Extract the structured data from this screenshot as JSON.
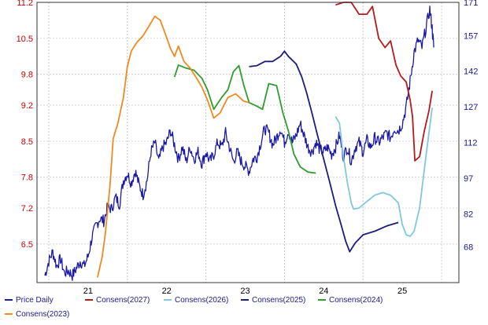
{
  "chart_data": {
    "type": "line",
    "x_ticks": [
      "21",
      "22",
      "23",
      "24",
      "25"
    ],
    "y_left": {
      "ticks": [
        "6.5",
        "7.2",
        "7.8",
        "8.5",
        "9.2",
        "9.8",
        "10.5",
        "11.2"
      ],
      "range": [
        5.75,
        11.2
      ]
    },
    "y_right": {
      "ticks": [
        "68",
        "82",
        "97",
        "112",
        "127",
        "142",
        "157",
        "171"
      ],
      "range": [
        53,
        171
      ]
    },
    "x_range": [
      20.85,
      26.22
    ],
    "grid": true,
    "legend_placement": "bottom",
    "series": [
      {
        "name": "Price Daily",
        "axis": "right",
        "color": "#1a1aa6",
        "points": [
          [
            20.95,
            56
          ],
          [
            21.0,
            62
          ],
          [
            21.05,
            66
          ],
          [
            21.1,
            60
          ],
          [
            21.15,
            63
          ],
          [
            21.2,
            57
          ],
          [
            21.25,
            58
          ],
          [
            21.3,
            56
          ],
          [
            21.35,
            59
          ],
          [
            21.4,
            62
          ],
          [
            21.45,
            60
          ],
          [
            21.5,
            64
          ],
          [
            21.55,
            72
          ],
          [
            21.6,
            77
          ],
          [
            21.65,
            80
          ],
          [
            21.7,
            79
          ],
          [
            21.75,
            85
          ],
          [
            21.8,
            84
          ],
          [
            21.85,
            89
          ],
          [
            21.9,
            86
          ],
          [
            21.95,
            96
          ],
          [
            22.0,
            99
          ],
          [
            22.05,
            95
          ],
          [
            22.1,
            100
          ],
          [
            22.15,
            94
          ],
          [
            22.2,
            90
          ],
          [
            22.25,
            96
          ],
          [
            22.3,
            108
          ],
          [
            22.35,
            112
          ],
          [
            22.4,
            104
          ],
          [
            22.45,
            110
          ],
          [
            22.5,
            112
          ],
          [
            22.55,
            117
          ],
          [
            22.6,
            111
          ],
          [
            22.65,
            105
          ],
          [
            22.7,
            110
          ],
          [
            22.75,
            104
          ],
          [
            22.8,
            110
          ],
          [
            22.85,
            105
          ],
          [
            22.9,
            108
          ],
          [
            22.95,
            103
          ],
          [
            23.0,
            108
          ],
          [
            23.05,
            104
          ],
          [
            23.1,
            107
          ],
          [
            23.15,
            112
          ],
          [
            23.2,
            110
          ],
          [
            23.25,
            116
          ],
          [
            23.3,
            110
          ],
          [
            23.35,
            104
          ],
          [
            23.4,
            108
          ],
          [
            23.45,
            104
          ],
          [
            23.5,
            102
          ],
          [
            23.55,
            100
          ],
          [
            23.6,
            105
          ],
          [
            23.65,
            106
          ],
          [
            23.7,
            112
          ],
          [
            23.75,
            118
          ],
          [
            23.8,
            116
          ],
          [
            23.85,
            111
          ],
          [
            23.9,
            114
          ],
          [
            23.95,
            118
          ],
          [
            24.0,
            112
          ],
          [
            24.05,
            117
          ],
          [
            24.1,
            112
          ],
          [
            24.15,
            115
          ],
          [
            24.2,
            120
          ],
          [
            24.25,
            115
          ],
          [
            24.3,
            110
          ],
          [
            24.35,
            108
          ],
          [
            24.4,
            112
          ],
          [
            24.45,
            109
          ],
          [
            24.5,
            108
          ],
          [
            24.55,
            110
          ],
          [
            24.6,
            107
          ],
          [
            24.65,
            110
          ],
          [
            24.7,
            115
          ],
          [
            24.75,
            106
          ],
          [
            24.8,
            110
          ],
          [
            24.85,
            104
          ],
          [
            24.9,
            110
          ],
          [
            24.95,
            112
          ],
          [
            25.0,
            108
          ],
          [
            25.05,
            113
          ],
          [
            25.1,
            110
          ],
          [
            25.15,
            114
          ],
          [
            25.2,
            112
          ],
          [
            25.25,
            114
          ],
          [
            25.3,
            116
          ],
          [
            25.35,
            114
          ],
          [
            25.4,
            118
          ],
          [
            25.45,
            117
          ],
          [
            25.5,
            120
          ],
          [
            25.55,
            127
          ],
          [
            25.6,
            138
          ],
          [
            25.65,
            150
          ],
          [
            25.7,
            155
          ],
          [
            25.75,
            152
          ],
          [
            25.8,
            160
          ],
          [
            25.85,
            168
          ],
          [
            25.88,
            160
          ],
          [
            25.9,
            152
          ]
        ]
      },
      {
        "name": "Consens(2027)",
        "axis": "left",
        "color": "#b31b1b",
        "points": [
          [
            24.65,
            11.15
          ],
          [
            24.75,
            11.2
          ],
          [
            24.85,
            11.2
          ],
          [
            24.95,
            10.97
          ],
          [
            25.05,
            10.97
          ],
          [
            25.12,
            11.12
          ],
          [
            25.2,
            10.5
          ],
          [
            25.28,
            10.32
          ],
          [
            25.35,
            10.45
          ],
          [
            25.42,
            9.98
          ],
          [
            25.48,
            9.77
          ],
          [
            25.55,
            9.65
          ],
          [
            25.6,
            9.3
          ],
          [
            25.63,
            8.98
          ],
          [
            25.66,
            8.12
          ],
          [
            25.72,
            8.2
          ],
          [
            25.78,
            8.7
          ],
          [
            25.84,
            9.1
          ],
          [
            25.88,
            9.48
          ]
        ]
      },
      {
        "name": "Consens(2026)",
        "axis": "left",
        "color": "#7fc8e0",
        "points": [
          [
            24.65,
            8.98
          ],
          [
            24.7,
            8.85
          ],
          [
            24.75,
            8.2
          ],
          [
            24.8,
            7.7
          ],
          [
            24.85,
            7.3
          ],
          [
            24.88,
            7.18
          ],
          [
            24.95,
            7.2
          ],
          [
            25.05,
            7.33
          ],
          [
            25.15,
            7.45
          ],
          [
            25.25,
            7.5
          ],
          [
            25.35,
            7.45
          ],
          [
            25.45,
            7.3
          ],
          [
            25.5,
            6.88
          ],
          [
            25.55,
            6.68
          ],
          [
            25.6,
            6.65
          ],
          [
            25.65,
            6.75
          ],
          [
            25.72,
            7.2
          ],
          [
            25.8,
            8.2
          ],
          [
            25.88,
            9.15
          ]
        ]
      },
      {
        "name": "Consens(2025)",
        "axis": "left",
        "color": "#1c1c7a",
        "points": [
          [
            23.55,
            9.95
          ],
          [
            23.65,
            9.97
          ],
          [
            23.75,
            10.05
          ],
          [
            23.85,
            10.05
          ],
          [
            23.95,
            10.15
          ],
          [
            24.0,
            10.25
          ],
          [
            24.05,
            10.15
          ],
          [
            24.15,
            10.0
          ],
          [
            24.22,
            9.75
          ],
          [
            24.28,
            9.45
          ],
          [
            24.35,
            9.05
          ],
          [
            24.42,
            8.62
          ],
          [
            24.5,
            8.15
          ],
          [
            24.58,
            7.68
          ],
          [
            24.65,
            7.25
          ],
          [
            24.72,
            6.88
          ],
          [
            24.78,
            6.55
          ],
          [
            24.83,
            6.35
          ],
          [
            24.9,
            6.52
          ],
          [
            25.0,
            6.68
          ],
          [
            25.15,
            6.75
          ],
          [
            25.3,
            6.85
          ],
          [
            25.45,
            6.92
          ]
        ]
      },
      {
        "name": "Consens(2024)",
        "axis": "left",
        "color": "#2e9c2e",
        "points": [
          [
            22.6,
            9.75
          ],
          [
            22.65,
            9.98
          ],
          [
            22.75,
            9.92
          ],
          [
            22.85,
            9.88
          ],
          [
            22.95,
            9.72
          ],
          [
            23.02,
            9.5
          ],
          [
            23.1,
            9.12
          ],
          [
            23.2,
            9.35
          ],
          [
            23.28,
            9.5
          ],
          [
            23.35,
            9.85
          ],
          [
            23.42,
            9.97
          ],
          [
            23.48,
            9.6
          ],
          [
            23.55,
            9.25
          ],
          [
            23.65,
            9.18
          ],
          [
            23.72,
            9.12
          ],
          [
            23.8,
            9.62
          ],
          [
            23.9,
            9.58
          ],
          [
            23.98,
            9.05
          ],
          [
            24.05,
            8.7
          ],
          [
            24.12,
            8.25
          ],
          [
            24.2,
            8.0
          ],
          [
            24.3,
            7.9
          ],
          [
            24.4,
            7.88
          ]
        ]
      },
      {
        "name": "Consens(2023)",
        "axis": "left",
        "color": "#f08a1e",
        "points": [
          [
            21.62,
            5.85
          ],
          [
            21.68,
            6.25
          ],
          [
            21.72,
            6.7
          ],
          [
            21.78,
            7.65
          ],
          [
            21.82,
            8.55
          ],
          [
            21.88,
            8.85
          ],
          [
            21.95,
            9.35
          ],
          [
            22.0,
            9.95
          ],
          [
            22.05,
            10.25
          ],
          [
            22.12,
            10.42
          ],
          [
            22.2,
            10.55
          ],
          [
            22.28,
            10.75
          ],
          [
            22.35,
            10.93
          ],
          [
            22.42,
            10.85
          ],
          [
            22.48,
            10.6
          ],
          [
            22.55,
            10.3
          ],
          [
            22.6,
            10.15
          ],
          [
            22.65,
            10.35
          ],
          [
            22.72,
            10.05
          ],
          [
            22.8,
            9.92
          ],
          [
            22.88,
            9.73
          ],
          [
            22.95,
            9.55
          ],
          [
            23.02,
            9.3
          ],
          [
            23.1,
            8.95
          ],
          [
            23.18,
            9.05
          ],
          [
            23.28,
            9.35
          ],
          [
            23.38,
            9.42
          ],
          [
            23.48,
            9.28
          ],
          [
            23.55,
            9.25
          ]
        ]
      }
    ]
  }
}
